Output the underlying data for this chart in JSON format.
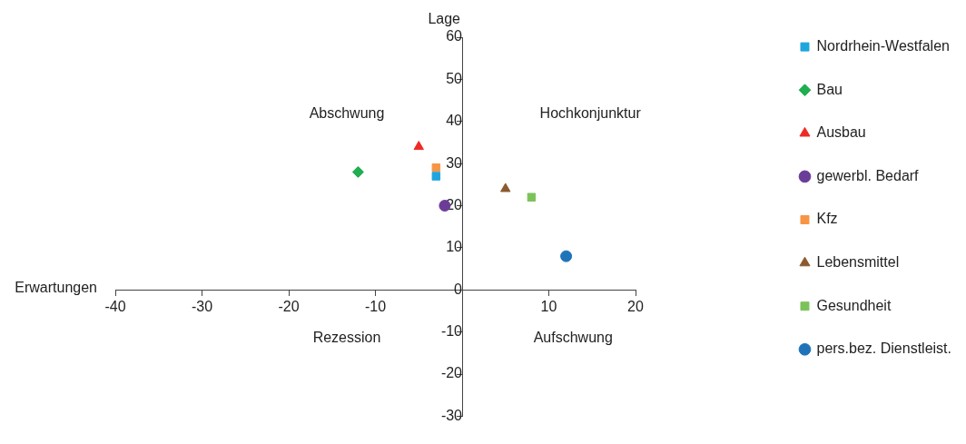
{
  "chart_data": {
    "type": "scatter",
    "xlabel": "Erwartungen",
    "ylabel": "Lage",
    "xlim": [
      -40,
      20
    ],
    "xticks": [
      -40,
      -30,
      -20,
      -10,
      10,
      20
    ],
    "ylim": [
      -30,
      60
    ],
    "yticks": [
      -30,
      -20,
      -10,
      0,
      10,
      20,
      30,
      40,
      50,
      60
    ],
    "legend": "right",
    "annotations": [
      "Abschwung",
      "Hochkonjunktur",
      "Rezession",
      "Aufschwung"
    ],
    "series": [
      {
        "name": "Nordrhein-Westfalen",
        "color": "#1ea5dd",
        "marker": "square",
        "x": [
          -3
        ],
        "values": [
          27
        ]
      },
      {
        "name": "Bau",
        "color": "#1fae50",
        "marker": "diamond",
        "x": [
          -12
        ],
        "values": [
          28
        ]
      },
      {
        "name": "Ausbau",
        "color": "#ee2a24",
        "marker": "triangle",
        "x": [
          -5
        ],
        "values": [
          34
        ]
      },
      {
        "name": "gewerbl. Bedarf",
        "color": "#6b3d98",
        "marker": "circle",
        "x": [
          -2
        ],
        "values": [
          20
        ]
      },
      {
        "name": "Kfz",
        "color": "#f79545",
        "marker": "square",
        "x": [
          -3
        ],
        "values": [
          29
        ]
      },
      {
        "name": "Lebensmittel",
        "color": "#8c5a2e",
        "marker": "triangle",
        "x": [
          5
        ],
        "values": [
          24
        ]
      },
      {
        "name": "Gesundheit",
        "color": "#7cc25a",
        "marker": "square",
        "x": [
          8
        ],
        "values": [
          22
        ]
      },
      {
        "name": "pers.bez. Dienstleist.",
        "color": "#1f73b9",
        "marker": "circle",
        "x": [
          12
        ],
        "values": [
          8
        ]
      }
    ]
  }
}
